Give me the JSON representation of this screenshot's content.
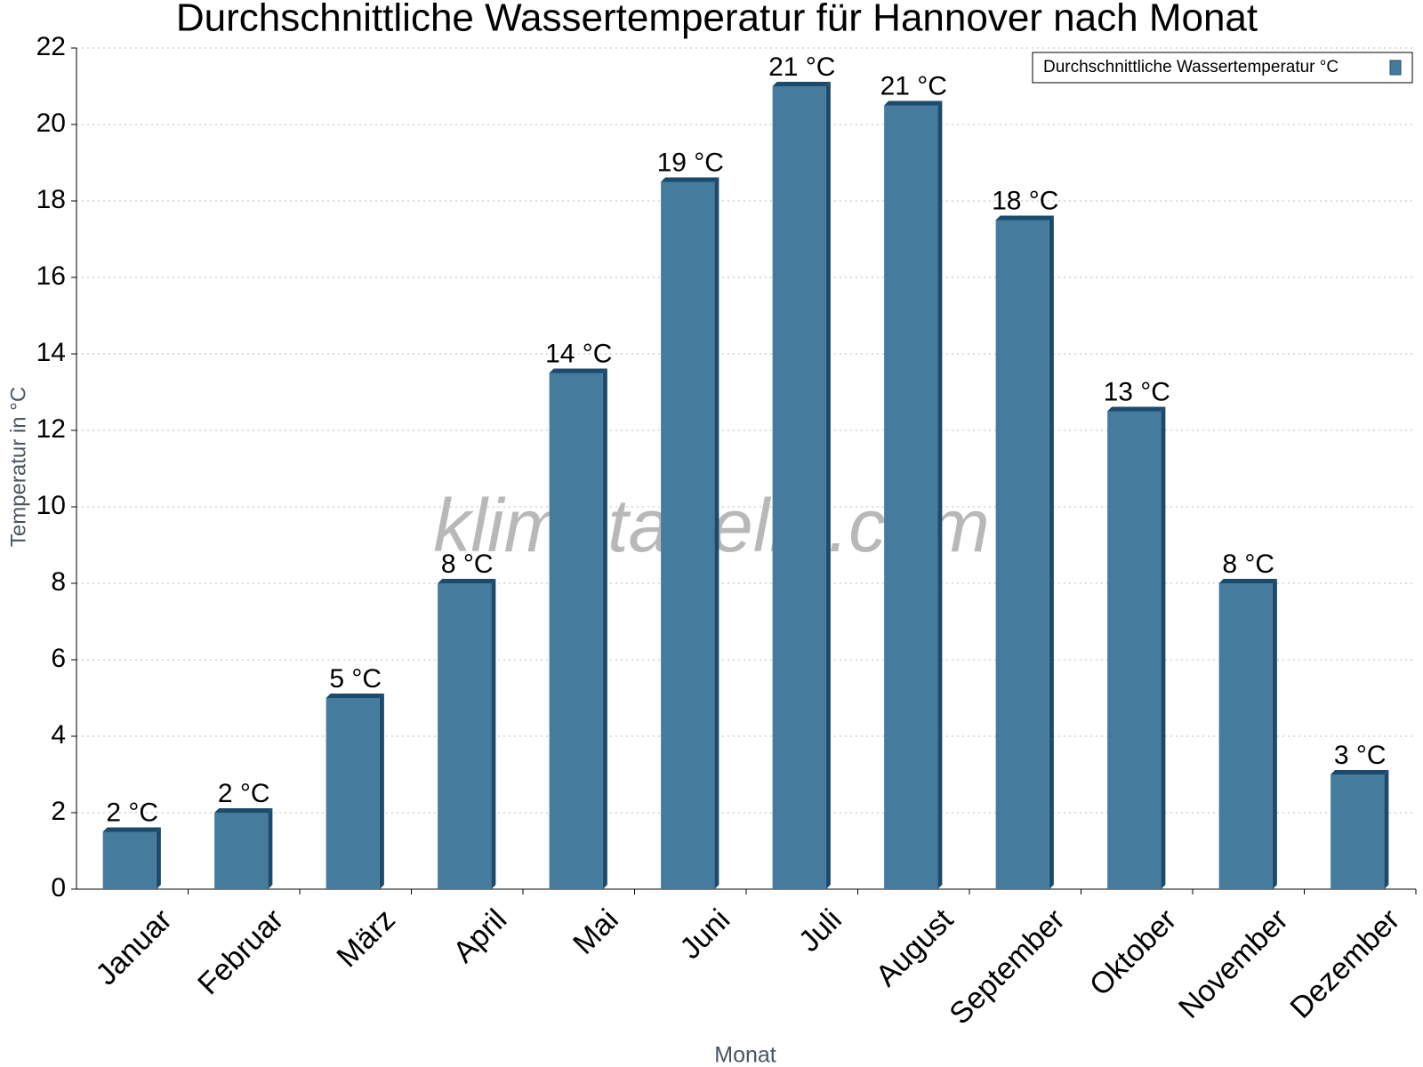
{
  "chart_data": {
    "type": "bar",
    "title": "Durchschnittliche Wassertemperatur für Hannover nach Monat",
    "watermark": "klimatabelle.com",
    "x_label": "Monat",
    "y_label": "Temperatur in °C",
    "categories": [
      "Januar",
      "Februar",
      "März",
      "April",
      "Mai",
      "Juni",
      "Juli",
      "August",
      "September",
      "Oktober",
      "November",
      "Dezember"
    ],
    "series": [
      {
        "name": "Durchschnittliche Wassertemperatur °C",
        "color": "#457b9d",
        "values": [
          1.5,
          2,
          5,
          8,
          13.5,
          18.5,
          21,
          20.5,
          17.5,
          12.5,
          8,
          3
        ],
        "value_labels": [
          "2 °C",
          "2 °C",
          "5 °C",
          "8 °C",
          "14 °C",
          "19 °C",
          "21 °C",
          "21 °C",
          "18 °C",
          "13 °C",
          "8 °C",
          "3 °C"
        ]
      }
    ],
    "ylim": [
      0,
      22
    ],
    "yticks": [
      0,
      2,
      4,
      6,
      8,
      10,
      12,
      14,
      16,
      18,
      20,
      22
    ],
    "grid": true,
    "legend": "top-right"
  }
}
